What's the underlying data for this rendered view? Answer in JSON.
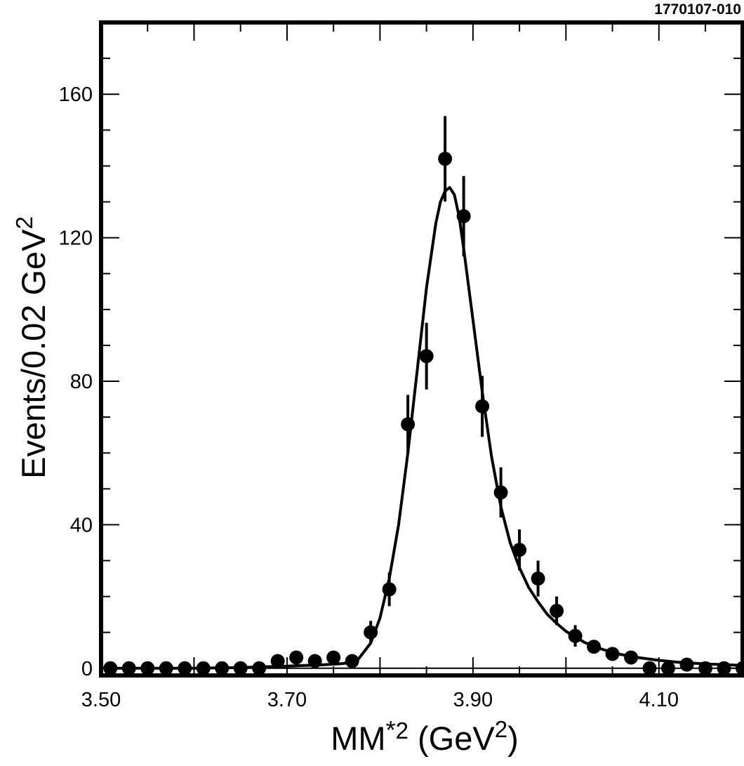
{
  "figure_id": "1770107-010",
  "chart_data": {
    "type": "scatter",
    "title": "",
    "xlabel": "MM*2 (GeV2)",
    "xlabel_parts": {
      "base": "MM",
      "star": "*",
      "exp1": "2",
      "open": " (GeV",
      "exp2": "2",
      "close": ")"
    },
    "ylabel": "Events/0.02 GeV2",
    "ylabel_parts": {
      "base": "Events/0.02 GeV",
      "exp": "2"
    },
    "xlim": [
      3.5,
      4.19
    ],
    "ylim": [
      -2,
      180
    ],
    "x_ticks": [
      3.5,
      3.7,
      3.9,
      4.1
    ],
    "x_tick_labels": [
      "3.50",
      "3.70",
      "3.90",
      "4.10"
    ],
    "y_ticks": [
      0,
      40,
      80,
      120,
      160
    ],
    "y_tick_labels": [
      "0",
      "40",
      "80",
      "120",
      "160"
    ],
    "grid": false,
    "series": [
      {
        "kind": "data-points-with-error-bars",
        "x": [
          3.51,
          3.53,
          3.55,
          3.57,
          3.59,
          3.61,
          3.63,
          3.65,
          3.67,
          3.69,
          3.71,
          3.73,
          3.75,
          3.77,
          3.79,
          3.81,
          3.83,
          3.85,
          3.87,
          3.89,
          3.91,
          3.93,
          3.95,
          3.97,
          3.99,
          4.01,
          4.03,
          4.05,
          4.07,
          4.09,
          4.11,
          4.13,
          4.15,
          4.17,
          4.19
        ],
        "y": [
          0,
          0,
          0,
          0,
          0,
          0,
          0,
          0,
          0,
          2,
          3,
          2,
          3,
          2,
          10,
          22,
          68,
          87,
          142,
          126,
          73,
          49,
          33,
          25,
          16,
          9,
          6,
          4,
          3,
          0,
          0,
          1,
          0,
          0,
          0
        ],
        "y_err": [
          0,
          0,
          0,
          0,
          0,
          0,
          0,
          0,
          0,
          0,
          0,
          0,
          0,
          0,
          3.2,
          4.7,
          8.2,
          9.3,
          11.9,
          11.2,
          8.5,
          7.0,
          5.7,
          5.0,
          4.0,
          3.0,
          0,
          0,
          0,
          0,
          0,
          0,
          0,
          0,
          0
        ]
      },
      {
        "kind": "fit-curve",
        "x": [
          3.5,
          3.55,
          3.6,
          3.65,
          3.7,
          3.72,
          3.74,
          3.76,
          3.775,
          3.79,
          3.8,
          3.81,
          3.82,
          3.83,
          3.84,
          3.85,
          3.86,
          3.865,
          3.87,
          3.875,
          3.88,
          3.885,
          3.89,
          3.9,
          3.91,
          3.92,
          3.93,
          3.94,
          3.95,
          3.96,
          3.97,
          3.98,
          3.99,
          4.0,
          4.02,
          4.04,
          4.06,
          4.08,
          4.1,
          4.12,
          4.15,
          4.19
        ],
        "y": [
          0,
          0,
          0,
          0.2,
          0.6,
          0.8,
          1.0,
          1.3,
          2.0,
          7.0,
          14,
          25,
          40,
          60,
          83,
          106,
          124,
          130,
          133,
          134,
          132,
          126,
          117,
          97,
          77,
          59,
          45,
          35,
          28,
          22.5,
          18.5,
          15,
          12.5,
          10.3,
          7.2,
          5.2,
          3.8,
          2.9,
          2.2,
          1.7,
          1.2,
          0.8
        ]
      }
    ]
  }
}
